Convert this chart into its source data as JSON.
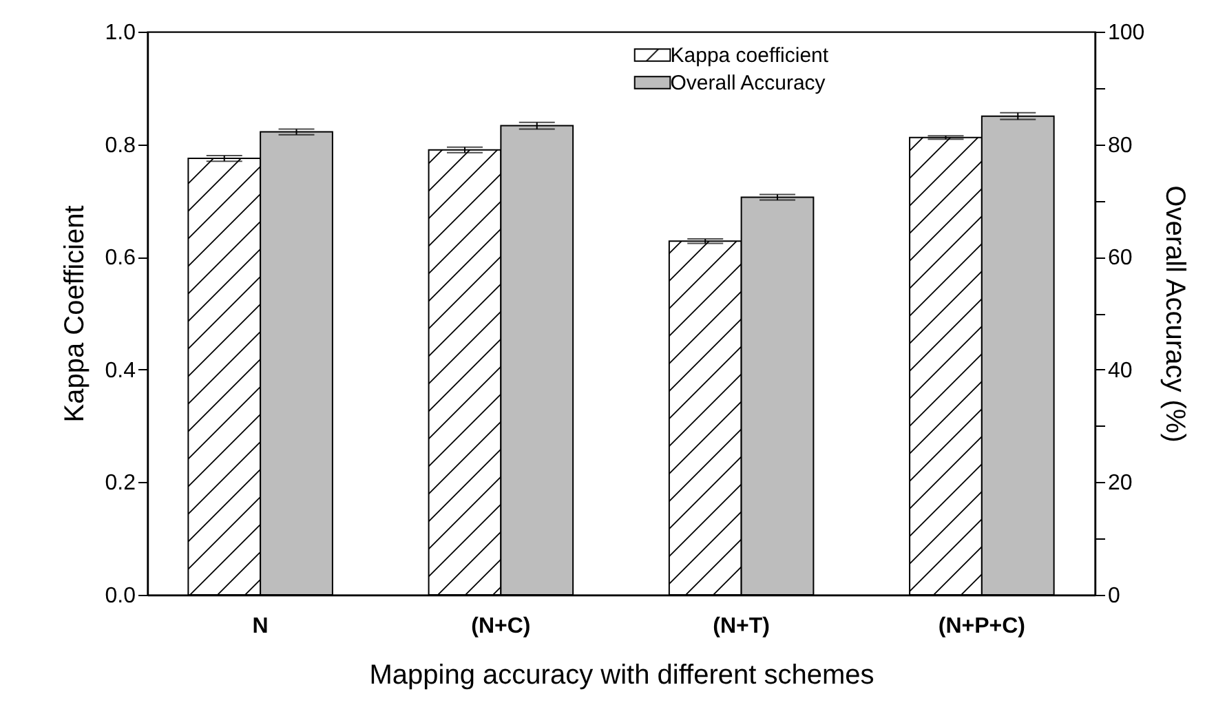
{
  "chart_data": {
    "type": "bar",
    "xlabel": "Mapping accuracy with different schemes",
    "ylabel": "Kappa Coefficient",
    "y2label": "Overall Accuracy (%)",
    "categories": [
      "N",
      "(N+C)",
      "(N+T)",
      "(N+P+C)"
    ],
    "series": [
      {
        "name": "Kappa coefficient",
        "color": "#ffffff",
        "values": [
          0.775,
          0.79,
          0.628,
          0.812
        ],
        "errors": [
          0.005,
          0.005,
          0.004,
          0.003
        ]
      },
      {
        "name": "Overall Accuracy",
        "color": "#bdbdbd",
        "axis": "y2",
        "values": [
          82.2,
          83.3,
          70.6,
          85.0
        ],
        "errors": [
          0.5,
          0.6,
          0.5,
          0.6
        ]
      }
    ],
    "ylim": [
      0,
      1
    ],
    "yticks": [
      {
        "value": 0,
        "label": "0.0"
      },
      0.2,
      0.4,
      0.6,
      0.8,
      {
        "value": 1,
        "label": "1.0"
      }
    ],
    "y2lim": [
      0,
      100
    ],
    "y2ticks": [
      0,
      {
        "value": 10,
        "label": null
      },
      20,
      {
        "value": 30,
        "label": null
      },
      40,
      {
        "value": 50,
        "label": null
      },
      60,
      {
        "value": 70,
        "label": null
      },
      80,
      {
        "value": 90,
        "label": null
      },
      100
    ],
    "legend": "top",
    "grid": false
  }
}
